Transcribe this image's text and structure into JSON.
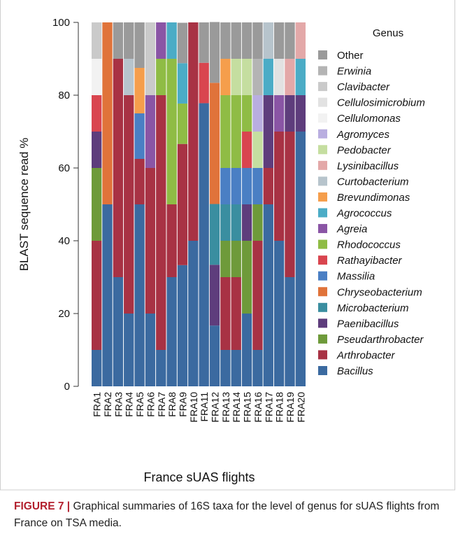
{
  "chart_data": {
    "type": "stacked_bar",
    "ylabel": "BLAST sequence read %",
    "xlabel": "France sUAS flights",
    "legend_title": "Genus",
    "ylim": [
      0,
      100
    ],
    "yticks": [
      0,
      20,
      40,
      60,
      80,
      100
    ],
    "categories": [
      "FRA1",
      "FRA2",
      "FRA3",
      "FRA4",
      "FRA5",
      "FRA6",
      "FRA7",
      "FRA8",
      "FRA9",
      "FRA10",
      "FRA11",
      "FRA12",
      "FRA13",
      "FRA14",
      "FRA15",
      "FRA16",
      "FRA17",
      "FRA18",
      "FRA19",
      "FRA20"
    ],
    "series": [
      {
        "name": "Bacillus",
        "italic": true,
        "color": "#3b6aa0",
        "values": [
          10,
          50,
          30,
          20,
          50,
          20,
          10,
          30,
          33.3,
          40,
          77.8,
          16.7,
          10,
          10,
          20,
          10,
          50,
          40,
          30,
          70
        ]
      },
      {
        "name": "Arthrobacter",
        "italic": true,
        "color": "#a83244",
        "values": [
          30,
          0,
          60,
          60,
          12.5,
          40,
          70,
          20,
          33.3,
          60,
          0,
          0,
          20,
          20,
          0,
          30,
          10,
          30,
          40,
          0
        ]
      },
      {
        "name": "Pseudarthrobacter",
        "italic": true,
        "color": "#6e9a3a",
        "values": [
          20,
          0,
          0,
          0,
          0,
          0,
          0,
          0,
          0,
          0,
          0,
          0,
          10,
          10,
          20,
          10,
          0,
          0,
          0,
          0
        ]
      },
      {
        "name": "Paenibacillus",
        "italic": true,
        "color": "#5e3d7c",
        "values": [
          10,
          0,
          0,
          0,
          0,
          0,
          0,
          0,
          0,
          0,
          0,
          16.7,
          0,
          0,
          10,
          0,
          20,
          0,
          10,
          10
        ]
      },
      {
        "name": "Microbacterium",
        "italic": true,
        "color": "#3a8ea0",
        "values": [
          0,
          0,
          0,
          0,
          0,
          0,
          0,
          0,
          0,
          0,
          0,
          16.7,
          10,
          10,
          0,
          0,
          0,
          0,
          0,
          0
        ]
      },
      {
        "name": "Chryseobacterium",
        "italic": true,
        "color": "#e0733a",
        "values": [
          0,
          50,
          0,
          0,
          0,
          0,
          0,
          0,
          0,
          0,
          0,
          33.3,
          0,
          0,
          0,
          0,
          0,
          0,
          0,
          0
        ]
      },
      {
        "name": "Massilia",
        "italic": true,
        "color": "#4a7fc4",
        "values": [
          0,
          0,
          0,
          0,
          12.5,
          0,
          0,
          0,
          0,
          0,
          0,
          0,
          10,
          10,
          10,
          10,
          0,
          0,
          0,
          0
        ]
      },
      {
        "name": "Rathayibacter",
        "italic": true,
        "color": "#d9454f",
        "values": [
          10,
          0,
          0,
          0,
          0,
          0,
          0,
          0,
          0,
          0,
          11.1,
          0,
          0,
          0,
          10,
          0,
          0,
          0,
          0,
          0
        ]
      },
      {
        "name": "Rhodococcus",
        "italic": true,
        "color": "#8fbc45",
        "values": [
          0,
          0,
          0,
          0,
          0,
          0,
          10,
          40,
          11.1,
          0,
          0,
          0,
          20,
          20,
          10,
          0,
          0,
          0,
          0,
          0
        ]
      },
      {
        "name": "Agreia",
        "italic": true,
        "color": "#8a55a5",
        "values": [
          0,
          0,
          0,
          0,
          0,
          20,
          10,
          0,
          0,
          0,
          0,
          0,
          0,
          0,
          0,
          0,
          0,
          10,
          0,
          0
        ]
      },
      {
        "name": "Agrococcus",
        "italic": true,
        "color": "#4bacc6",
        "values": [
          0,
          0,
          0,
          0,
          0,
          0,
          0,
          10,
          11.1,
          0,
          0,
          0,
          0,
          0,
          0,
          0,
          10,
          0,
          0,
          10
        ]
      },
      {
        "name": "Brevundimonas",
        "italic": true,
        "color": "#f59e4c",
        "values": [
          0,
          0,
          0,
          0,
          12.5,
          0,
          0,
          0,
          0,
          0,
          0,
          0,
          10,
          0,
          0,
          0,
          0,
          0,
          0,
          0
        ]
      },
      {
        "name": "Curtobacterium",
        "italic": true,
        "color": "#b7c4cc",
        "values": [
          0,
          0,
          0,
          10,
          0,
          0,
          0,
          0,
          0,
          0,
          0,
          0,
          0,
          0,
          0,
          0,
          10,
          0,
          0,
          0
        ]
      },
      {
        "name": "Lysinibacillus",
        "italic": true,
        "color": "#e3a8a8",
        "values": [
          0,
          0,
          0,
          0,
          0,
          0,
          0,
          0,
          0,
          0,
          0,
          0,
          0,
          0,
          0,
          0,
          0,
          0,
          10,
          10
        ]
      },
      {
        "name": "Pedobacter",
        "italic": true,
        "color": "#c5dea0",
        "values": [
          0,
          0,
          0,
          0,
          0,
          0,
          0,
          0,
          0,
          0,
          0,
          0,
          0,
          10,
          10,
          10,
          0,
          0,
          0,
          0
        ]
      },
      {
        "name": "Agromyces",
        "italic": true,
        "color": "#b9aee0",
        "values": [
          0,
          0,
          0,
          0,
          0,
          0,
          0,
          0,
          0,
          0,
          0,
          0,
          0,
          0,
          0,
          10,
          0,
          0,
          0,
          0
        ]
      },
      {
        "name": "Cellulomonas",
        "italic": true,
        "color": "#f2f2f2",
        "values": [
          10,
          0,
          0,
          0,
          0,
          0,
          0,
          0,
          0,
          0,
          0,
          0,
          0,
          0,
          0,
          0,
          0,
          0,
          0,
          0
        ]
      },
      {
        "name": "Cellulosimicrobium",
        "italic": true,
        "color": "#e2e2e2",
        "values": [
          0,
          0,
          0,
          0,
          0,
          0,
          0,
          0,
          0,
          0,
          0,
          0,
          0,
          0,
          0,
          0,
          0,
          10,
          0,
          0
        ]
      },
      {
        "name": "Clavibacter",
        "italic": true,
        "color": "#cacaca",
        "values": [
          10,
          0,
          0,
          0,
          0,
          20,
          0,
          0,
          0,
          0,
          0,
          0,
          0,
          0,
          0,
          0,
          0,
          0,
          0,
          0
        ]
      },
      {
        "name": "Erwinia",
        "italic": true,
        "color": "#b4b4b4",
        "values": [
          0,
          0,
          0,
          0,
          0,
          0,
          0,
          0,
          0,
          0,
          0,
          0,
          0,
          0,
          0,
          10,
          0,
          0,
          0,
          0
        ]
      },
      {
        "name": "Other",
        "italic": false,
        "color": "#9a9a9a",
        "values": [
          0,
          0,
          10,
          10,
          12.5,
          0,
          0,
          0,
          11.1,
          0,
          11.1,
          16.7,
          10,
          10,
          10,
          10,
          0,
          10,
          10,
          0
        ]
      }
    ]
  },
  "caption": {
    "label": "FIGURE 7 |",
    "text": "Graphical summaries of 16S taxa for the level of genus for sUAS flights from France on TSA media."
  }
}
